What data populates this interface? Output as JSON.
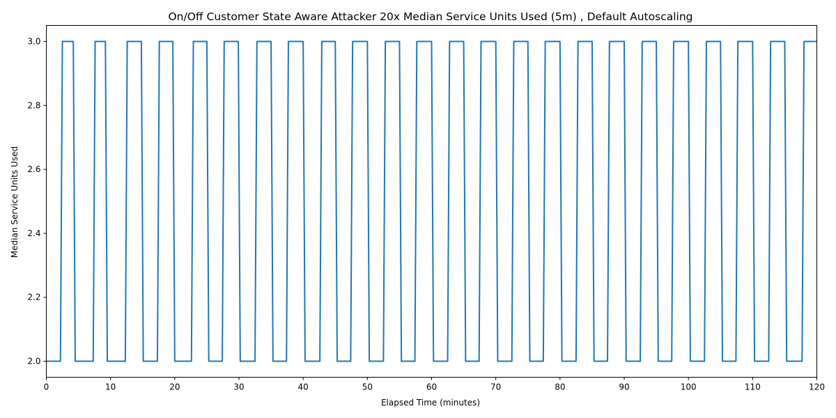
{
  "chart_data": {
    "type": "line",
    "title": "On/Off Customer State Aware Attacker 20x Median Service Units Used (5m) , Default Autoscaling",
    "xlabel": "Elapsed Time (minutes)",
    "ylabel": "Median Service Units Used",
    "xlim": [
      0,
      120
    ],
    "ylim": [
      1.95,
      3.05
    ],
    "xticks": [
      0,
      10,
      20,
      30,
      40,
      50,
      60,
      70,
      80,
      90,
      100,
      110,
      120
    ],
    "yticks": [
      2.0,
      2.2,
      2.4,
      2.6,
      2.8,
      3.0
    ],
    "grid": false,
    "legend": "none",
    "line_color": "#1f77b4",
    "series": [
      {
        "x": [
          0,
          2.2,
          2.5,
          4.2,
          4.5,
          7.3,
          7.6,
          9.2,
          9.5,
          12.3,
          12.6,
          14.8,
          15.1,
          17.3,
          17.6,
          19.7,
          20.0,
          22.6,
          22.9,
          25.0,
          25.3,
          27.4,
          27.7,
          29.9,
          30.2,
          32.5,
          32.8,
          35.0,
          35.3,
          37.4,
          37.7,
          40.0,
          40.3,
          42.6,
          42.9,
          45.0,
          45.3,
          47.4,
          47.7,
          50.0,
          50.3,
          52.5,
          52.8,
          55.0,
          55.3,
          57.4,
          57.7,
          60.0,
          60.3,
          62.5,
          62.8,
          65.0,
          65.3,
          67.4,
          67.7,
          70.0,
          70.3,
          72.5,
          72.8,
          75.0,
          75.3,
          77.4,
          77.7,
          80.0,
          80.3,
          82.5,
          82.8,
          85.0,
          85.3,
          87.4,
          87.7,
          90.0,
          90.3,
          92.5,
          92.8,
          95.0,
          95.3,
          97.4,
          97.7,
          100.0,
          100.3,
          102.5,
          102.8,
          105.0,
          105.3,
          107.4,
          107.7,
          110.0,
          110.3,
          112.5,
          112.8,
          115.0,
          115.3,
          117.7,
          118.0,
          120
        ],
        "y": [
          2,
          2,
          3,
          3,
          2,
          2,
          3,
          3,
          2,
          2,
          3,
          3,
          2,
          2,
          3,
          3,
          2,
          2,
          3,
          3,
          2,
          2,
          3,
          3,
          2,
          2,
          3,
          3,
          2,
          2,
          3,
          3,
          2,
          2,
          3,
          3,
          2,
          2,
          3,
          3,
          2,
          2,
          3,
          3,
          2,
          2,
          3,
          3,
          2,
          2,
          3,
          3,
          2,
          2,
          3,
          3,
          2,
          2,
          3,
          3,
          2,
          2,
          3,
          3,
          2,
          2,
          3,
          3,
          2,
          2,
          3,
          3,
          2,
          2,
          3,
          3,
          2,
          2,
          3,
          3,
          2,
          2,
          3,
          3,
          2,
          2,
          3,
          3,
          2,
          2,
          3,
          3,
          2,
          2,
          3,
          3
        ]
      }
    ]
  }
}
